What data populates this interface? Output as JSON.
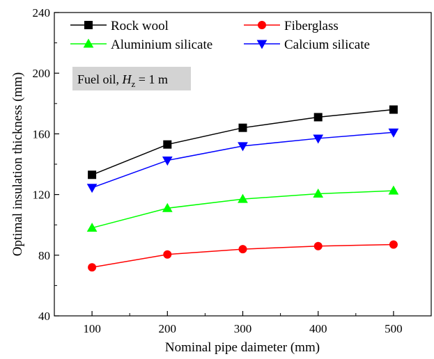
{
  "chart_data": {
    "type": "line",
    "title": "",
    "xlabel": "Nominal pipe daimeter (mm)",
    "ylabel": "Optimal insulation thickness  (mm)",
    "x": [
      100,
      200,
      300,
      400,
      500
    ],
    "xticks": [
      100,
      200,
      300,
      400,
      500
    ],
    "xlim": [
      50,
      550
    ],
    "yticks": [
      40,
      80,
      120,
      160,
      200,
      240
    ],
    "ylim": [
      40,
      240
    ],
    "grid": false,
    "legend_position": "top",
    "annotation": {
      "prefix": "Fuel oil, ",
      "var": "H",
      "sub": "z",
      "suffix": " = 1 m"
    },
    "series": [
      {
        "name": "Rock wool",
        "color": "#000000",
        "marker": "square",
        "values": [
          133,
          153,
          164,
          171,
          176
        ]
      },
      {
        "name": "Fiberglass",
        "color": "#ff0000",
        "marker": "circle",
        "values": [
          72,
          80.5,
          84,
          86,
          87
        ]
      },
      {
        "name": "Aluminium silicate",
        "color": "#00ff00",
        "marker": "triangle-up",
        "values": [
          98,
          111,
          117,
          120.5,
          122.5
        ]
      },
      {
        "name": "Calcium silicate",
        "color": "#0000ff",
        "marker": "triangle-down",
        "values": [
          124.5,
          142.5,
          152,
          157,
          161
        ]
      }
    ]
  }
}
